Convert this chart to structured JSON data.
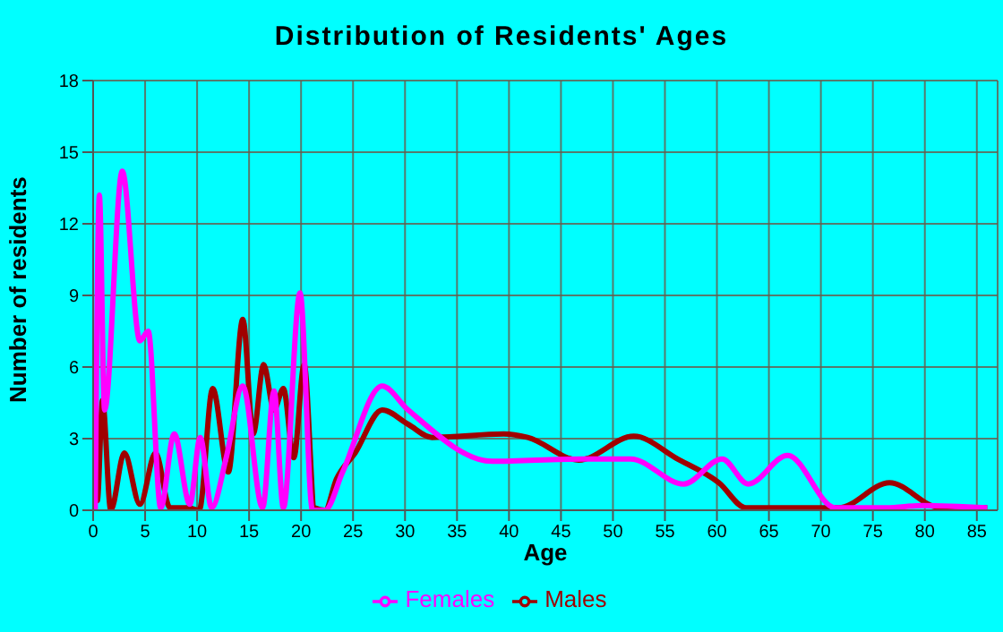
{
  "chart_data": {
    "type": "line",
    "title": "Distribution of Residents' Ages",
    "xlabel": "Age",
    "ylabel": "Number of residents",
    "xlim": [
      0,
      87
    ],
    "xticks": [
      0,
      5,
      10,
      15,
      20,
      25,
      30,
      35,
      40,
      45,
      50,
      55,
      60,
      65,
      70,
      75,
      80,
      85
    ],
    "ylim": [
      0,
      18
    ],
    "yticks": [
      0,
      3,
      6,
      9,
      12,
      15,
      18
    ],
    "grid": true,
    "legend": "bottom",
    "marker": "none",
    "line_style": "solid",
    "series": [
      {
        "name": "Males",
        "color": "#a00000",
        "x": [
          0.2,
          0.4,
          0.9,
          1.7,
          3,
          4.5,
          6,
          7.4,
          9.1,
          10.2,
          11.5,
          13,
          14.4,
          15.4,
          16.4,
          17.4,
          18.3,
          19.3,
          20.3,
          21.3,
          22.3,
          23.4,
          25.2,
          27.8,
          30.3,
          32.6,
          39.5,
          41.8,
          46.7,
          52,
          56.2,
          60.2,
          62.8,
          67.7,
          71.7,
          76.6,
          81.5,
          86
        ],
        "values": [
          6.1,
          0.4,
          4.6,
          0,
          2.4,
          0.25,
          2.4,
          0.1,
          0.1,
          0,
          5.1,
          1.6,
          8,
          3.2,
          6.1,
          4.2,
          5.1,
          2.2,
          6.1,
          0.1,
          0,
          1.3,
          2.4,
          4.2,
          3.6,
          3.05,
          3.2,
          3.05,
          2.1,
          3.1,
          2.15,
          1.15,
          0.1,
          0.1,
          0.1,
          1.15,
          0.1,
          0.1
        ]
      },
      {
        "name": "Females",
        "color": "#ff00ff",
        "x": [
          0.2,
          0.6,
          1.1,
          2.8,
          4.5,
          5.3,
          6.5,
          7.8,
          9.3,
          10.3,
          11.4,
          12.8,
          14.4,
          16.3,
          17.4,
          18.3,
          19.9,
          21.1,
          22.3,
          24,
          27.8,
          30.3,
          38.4,
          47,
          51.7,
          56.8,
          60.5,
          63,
          66.8,
          71.4,
          76.3,
          79.8,
          86
        ],
        "values": [
          0,
          13.2,
          4.2,
          14.2,
          7.1,
          7.5,
          0.1,
          3.2,
          0.25,
          3.05,
          0.1,
          2.2,
          5.2,
          0.1,
          5,
          0.1,
          9.1,
          0,
          0,
          1.6,
          5.2,
          4.2,
          2.05,
          2.15,
          2.15,
          1.1,
          2.15,
          1.1,
          2.3,
          0.1,
          0.1,
          0.2,
          0.1
        ]
      }
    ]
  }
}
